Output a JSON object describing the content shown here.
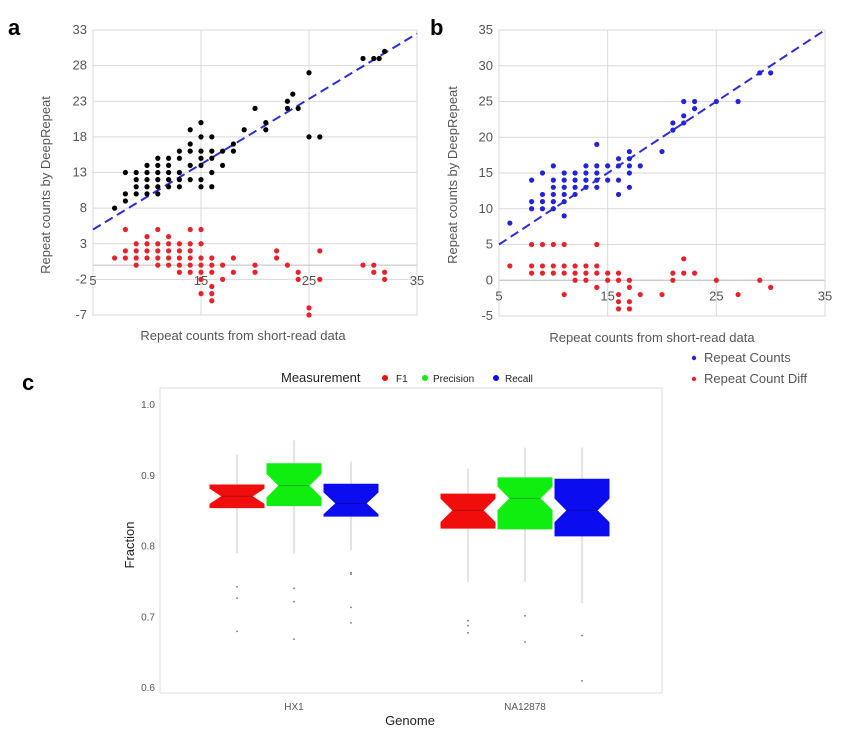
{
  "chart_data": [
    {
      "panel": "a",
      "type": "scatter",
      "xlabel": "Repeat counts from short-read data",
      "ylabel": "Repeat counts by DeepRepeat",
      "xlim": [
        5,
        35
      ],
      "ylim": [
        -7,
        33
      ],
      "xticks": [
        "5",
        "15",
        "25",
        "35"
      ],
      "yticks": [
        "-7",
        "-2",
        "3",
        "8",
        "13",
        "18",
        "23",
        "28",
        "33"
      ],
      "grid": true,
      "fit_line": {
        "color": "#2d2dd6",
        "style": "dashed",
        "points": [
          [
            5,
            5.0
          ],
          [
            35,
            32.5
          ]
        ]
      },
      "series": [
        {
          "name": "Repeat Counts",
          "color": "#000000",
          "points": [
            [
              7,
              8
            ],
            [
              8,
              9
            ],
            [
              8,
              10
            ],
            [
              8,
              13
            ],
            [
              9,
              10
            ],
            [
              9,
              11
            ],
            [
              9,
              12
            ],
            [
              9,
              13
            ],
            [
              10,
              10
            ],
            [
              10,
              11
            ],
            [
              10,
              12
            ],
            [
              10,
              13
            ],
            [
              10,
              14
            ],
            [
              11,
              10
            ],
            [
              11,
              11
            ],
            [
              11,
              12
            ],
            [
              11,
              13
            ],
            [
              11,
              14
            ],
            [
              11,
              15
            ],
            [
              12,
              11
            ],
            [
              12,
              12
            ],
            [
              12,
              13
            ],
            [
              12,
              14
            ],
            [
              12,
              15
            ],
            [
              13,
              11
            ],
            [
              13,
              12
            ],
            [
              13,
              13
            ],
            [
              13,
              15
            ],
            [
              13,
              16
            ],
            [
              14,
              12
            ],
            [
              14,
              14
            ],
            [
              14,
              16
            ],
            [
              14,
              17
            ],
            [
              14,
              19
            ],
            [
              15,
              11
            ],
            [
              15,
              12
            ],
            [
              15,
              14
            ],
            [
              15,
              15
            ],
            [
              15,
              16
            ],
            [
              15,
              18
            ],
            [
              15,
              20
            ],
            [
              16,
              11
            ],
            [
              16,
              13
            ],
            [
              16,
              15
            ],
            [
              16,
              16
            ],
            [
              16,
              18
            ],
            [
              17,
              14
            ],
            [
              17,
              16
            ],
            [
              18,
              16
            ],
            [
              18,
              17
            ],
            [
              19,
              19
            ],
            [
              20,
              22
            ],
            [
              21,
              19
            ],
            [
              21,
              20
            ],
            [
              23,
              22
            ],
            [
              23,
              23
            ],
            [
              23.5,
              24
            ],
            [
              24,
              22
            ],
            [
              25,
              18
            ],
            [
              25,
              27
            ],
            [
              26,
              18
            ],
            [
              30,
              29
            ],
            [
              31,
              29
            ],
            [
              31.5,
              29
            ],
            [
              32,
              30
            ]
          ]
        },
        {
          "name": "Repeat Count Diff",
          "color": "#e8222c",
          "points": [
            [
              7,
              1
            ],
            [
              8,
              1
            ],
            [
              8,
              2
            ],
            [
              8,
              5
            ],
            [
              9,
              0
            ],
            [
              9,
              1
            ],
            [
              9,
              2
            ],
            [
              9,
              3
            ],
            [
              10,
              1
            ],
            [
              10,
              2
            ],
            [
              10,
              3
            ],
            [
              10,
              4
            ],
            [
              11,
              0
            ],
            [
              11,
              1
            ],
            [
              11,
              2
            ],
            [
              11,
              3
            ],
            [
              11,
              5
            ],
            [
              12,
              0
            ],
            [
              12,
              1
            ],
            [
              12,
              2
            ],
            [
              12,
              3
            ],
            [
              12,
              4
            ],
            [
              13,
              -1
            ],
            [
              13,
              0
            ],
            [
              13,
              1
            ],
            [
              13,
              2
            ],
            [
              13,
              3
            ],
            [
              14,
              -1
            ],
            [
              14,
              0
            ],
            [
              14,
              1
            ],
            [
              14,
              2
            ],
            [
              14,
              3
            ],
            [
              14,
              5
            ],
            [
              15,
              -4
            ],
            [
              15,
              -2
            ],
            [
              15,
              -1
            ],
            [
              15,
              0
            ],
            [
              15,
              1
            ],
            [
              15,
              3
            ],
            [
              15,
              5
            ],
            [
              16,
              -5
            ],
            [
              16,
              -4
            ],
            [
              16,
              -3
            ],
            [
              16,
              -1
            ],
            [
              16,
              0
            ],
            [
              16,
              1
            ],
            [
              17,
              -2
            ],
            [
              17,
              0
            ],
            [
              18,
              -1
            ],
            [
              18,
              1
            ],
            [
              20,
              0
            ],
            [
              20,
              -1
            ],
            [
              22,
              2
            ],
            [
              22,
              1
            ],
            [
              23,
              0
            ],
            [
              24,
              -1
            ],
            [
              24,
              -2
            ],
            [
              25,
              -6
            ],
            [
              25,
              -7
            ],
            [
              26,
              2
            ],
            [
              26,
              -2
            ],
            [
              30,
              0
            ],
            [
              31,
              -1
            ],
            [
              31,
              0
            ],
            [
              32,
              -1
            ],
            [
              32,
              -2
            ]
          ]
        }
      ]
    },
    {
      "panel": "b",
      "type": "scatter",
      "xlabel": "Repeat counts from short-read data",
      "ylabel": "Repeat counts by DeepRepeat",
      "xlim": [
        5,
        35
      ],
      "ylim": [
        -5,
        35
      ],
      "xticks": [
        "5",
        "15",
        "25",
        "35"
      ],
      "yticks": [
        "-5",
        "0",
        "5",
        "10",
        "15",
        "20",
        "25",
        "30",
        "35"
      ],
      "grid": true,
      "legend": {
        "position": "bottom-right",
        "entries": [
          "Repeat Counts",
          "Repeat Count Diff"
        ]
      },
      "fit_line": {
        "color": "#2d2dd6",
        "style": "dashed",
        "points": [
          [
            5,
            5.0
          ],
          [
            35,
            35.0
          ]
        ]
      },
      "series": [
        {
          "name": "Repeat Counts",
          "color": "#2323d8",
          "points": [
            [
              6,
              8
            ],
            [
              8,
              10
            ],
            [
              8,
              11
            ],
            [
              8,
              14
            ],
            [
              9,
              10
            ],
            [
              9,
              11
            ],
            [
              9,
              12
            ],
            [
              9,
              15
            ],
            [
              10,
              10
            ],
            [
              10,
              11
            ],
            [
              10,
              12
            ],
            [
              10,
              13
            ],
            [
              10,
              14
            ],
            [
              10,
              16
            ],
            [
              11,
              9
            ],
            [
              11,
              11
            ],
            [
              11,
              12
            ],
            [
              11,
              13
            ],
            [
              11,
              14
            ],
            [
              11,
              15
            ],
            [
              12,
              12
            ],
            [
              12,
              13
            ],
            [
              12,
              14
            ],
            [
              12,
              15
            ],
            [
              13,
              13
            ],
            [
              13,
              14
            ],
            [
              13,
              15
            ],
            [
              13,
              16
            ],
            [
              14,
              13
            ],
            [
              14,
              14
            ],
            [
              14,
              15
            ],
            [
              14,
              16
            ],
            [
              14,
              19
            ],
            [
              15,
              14
            ],
            [
              15,
              16
            ],
            [
              16,
              12
            ],
            [
              16,
              14
            ],
            [
              16,
              16
            ],
            [
              16,
              17
            ],
            [
              17,
              13
            ],
            [
              17,
              15
            ],
            [
              17,
              16
            ],
            [
              17,
              17
            ],
            [
              17,
              18
            ],
            [
              18,
              16
            ],
            [
              20,
              18
            ],
            [
              21,
              21
            ],
            [
              21,
              22
            ],
            [
              22,
              22
            ],
            [
              22,
              23
            ],
            [
              22,
              25
            ],
            [
              23,
              24
            ],
            [
              23,
              25
            ],
            [
              25,
              25
            ],
            [
              27,
              25
            ],
            [
              29,
              29
            ],
            [
              30,
              29
            ]
          ]
        },
        {
          "name": "Repeat Count Diff",
          "color": "#e8222c",
          "points": [
            [
              6,
              2
            ],
            [
              8,
              1
            ],
            [
              8,
              2
            ],
            [
              8,
              5
            ],
            [
              9,
              1
            ],
            [
              9,
              2
            ],
            [
              9,
              5
            ],
            [
              10,
              1
            ],
            [
              10,
              2
            ],
            [
              10,
              5
            ],
            [
              11,
              -2
            ],
            [
              11,
              1
            ],
            [
              11,
              2
            ],
            [
              11,
              5
            ],
            [
              12,
              0
            ],
            [
              12,
              1
            ],
            [
              12,
              2
            ],
            [
              13,
              0
            ],
            [
              13,
              1
            ],
            [
              13,
              2
            ],
            [
              14,
              -1
            ],
            [
              14,
              1
            ],
            [
              14,
              2
            ],
            [
              14,
              5
            ],
            [
              15,
              0
            ],
            [
              15,
              1
            ],
            [
              16,
              -4
            ],
            [
              16,
              -3
            ],
            [
              16,
              -2
            ],
            [
              16,
              0
            ],
            [
              16,
              1
            ],
            [
              17,
              -4
            ],
            [
              17,
              -3
            ],
            [
              17,
              -1
            ],
            [
              17,
              0
            ],
            [
              18,
              -2
            ],
            [
              20,
              -2
            ],
            [
              21,
              0
            ],
            [
              21,
              1
            ],
            [
              22,
              1
            ],
            [
              22,
              3
            ],
            [
              23,
              1
            ],
            [
              25,
              0
            ],
            [
              27,
              -2
            ],
            [
              29,
              0
            ],
            [
              30,
              -1
            ]
          ]
        }
      ]
    },
    {
      "panel": "c",
      "type": "box",
      "xlabel": "Genome",
      "ylabel": "Fraction",
      "ylim": [
        0.58,
        1.02
      ],
      "yticks": [
        "0.6",
        "0.7",
        "0.8",
        "0.9",
        "1.0"
      ],
      "categories": [
        "HX1",
        "NA12878"
      ],
      "legend": {
        "title": "Measurement",
        "position": "top",
        "entries": [
          "F1",
          "Precision",
          "Recall"
        ]
      },
      "series": [
        {
          "name": "F1",
          "color": "#f20d0d",
          "values": [
            {
              "whisker_low": 0.79,
              "q1": 0.855,
              "median": 0.871,
              "q3": 0.887,
              "whisker_high": 0.93,
              "outliers": [
                0.743,
                0.727,
                0.68
              ]
            },
            {
              "whisker_low": 0.75,
              "q1": 0.826,
              "median": 0.851,
              "q3": 0.874,
              "whisker_high": 0.91,
              "outliers": [
                0.695,
                0.688,
                0.678
              ]
            }
          ]
        },
        {
          "name": "Precision",
          "color": "#10ee10",
          "values": [
            {
              "whisker_low": 0.79,
              "q1": 0.858,
              "median": 0.886,
              "q3": 0.917,
              "whisker_high": 0.95,
              "outliers": [
                0.741,
                0.722,
                0.669
              ]
            },
            {
              "whisker_low": 0.75,
              "q1": 0.825,
              "median": 0.868,
              "q3": 0.897,
              "whisker_high": 0.94,
              "outliers": [
                0.702,
                0.665
              ]
            }
          ]
        },
        {
          "name": "Recall",
          "color": "#0c0cf0",
          "values": [
            {
              "whisker_low": 0.795,
              "q1": 0.843,
              "median": 0.861,
              "q3": 0.888,
              "whisker_high": 0.92,
              "outliers": [
                0.763,
                0.761,
                0.714,
                0.692
              ]
            },
            {
              "whisker_low": 0.72,
              "q1": 0.815,
              "median": 0.851,
              "q3": 0.895,
              "whisker_high": 0.94,
              "outliers": [
                0.674,
                0.61
              ]
            }
          ]
        }
      ]
    }
  ]
}
